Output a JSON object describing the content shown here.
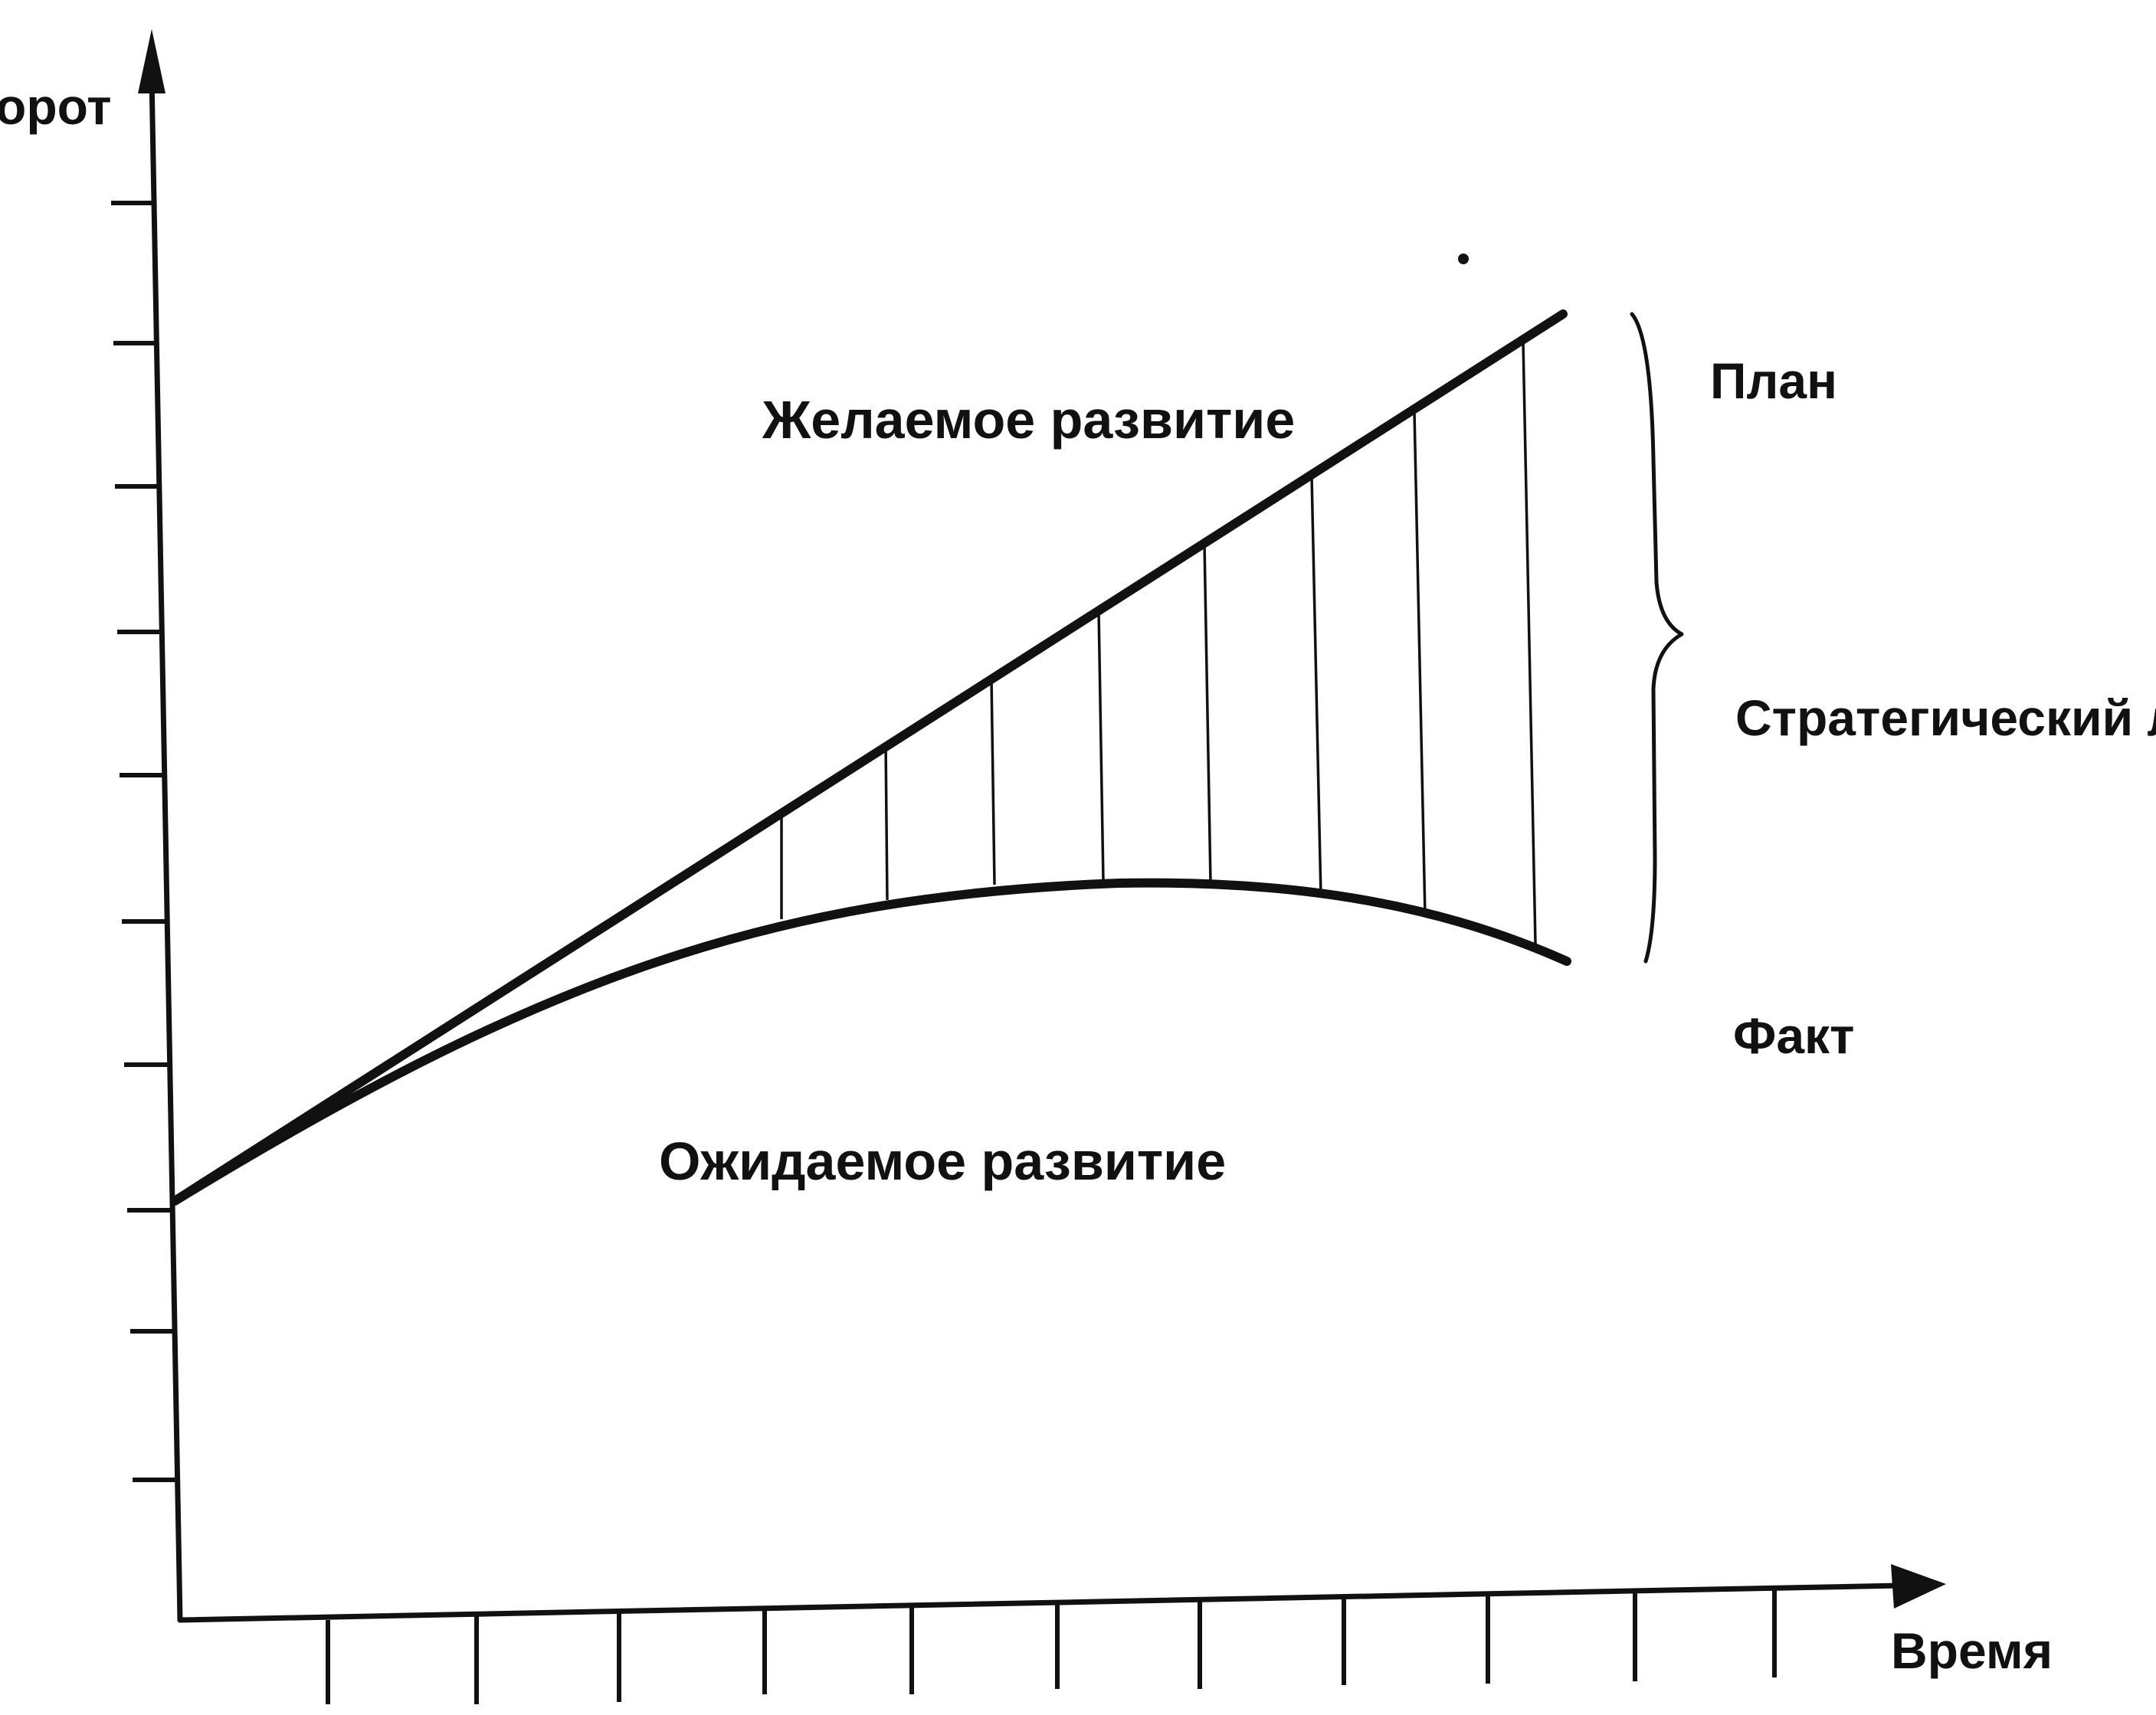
{
  "labels": {
    "y_axis": "орот",
    "x_axis": "Время",
    "desired": "Желаемое развитие",
    "expected": "Ожидаемое развитие",
    "plan": "План",
    "gap": "Стратегический л",
    "fact": "Факт"
  },
  "colors": {
    "ink": "#111111",
    "background": "#ffffff"
  }
}
